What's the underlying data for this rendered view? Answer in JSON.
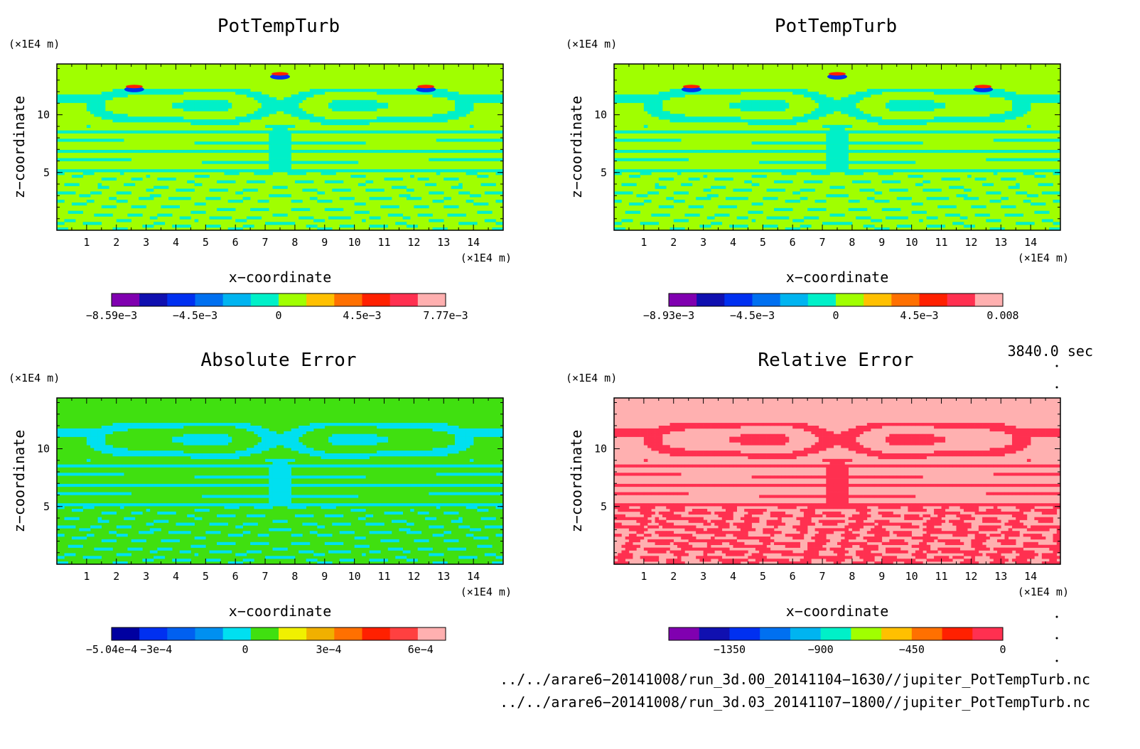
{
  "chart_data": [
    {
      "type": "heatmap",
      "title": "PotTempTurb",
      "xlabel": "x−coordinate",
      "ylabel": "z−coordinate",
      "x_unit": "(×1E4 m)",
      "y_unit": "(×1E4 m)",
      "xlim": [
        0,
        15
      ],
      "ylim": [
        0,
        14.4
      ],
      "x_ticks": [
        "1",
        "2",
        "3",
        "4",
        "5",
        "6",
        "7",
        "8",
        "9",
        "10",
        "11",
        "12",
        "13",
        "14"
      ],
      "y_ticks": [
        "5",
        "10"
      ],
      "style": "field",
      "colorbar": {
        "colors": [
          "#8000b0",
          "#1010b0",
          "#0030f0",
          "#0070f0",
          "#00b4f0",
          "#00f0c8",
          "#a0ff00",
          "#ffc000",
          "#ff7000",
          "#ff2000",
          "#ff3050",
          "#ffb0b0"
        ],
        "labels": [
          "−8.59e−3",
          "−4.5e−3",
          "0",
          "4.5e−3",
          "7.77e−3"
        ],
        "label_pos": [
          0,
          3,
          6,
          9,
          12
        ],
        "min": -0.00859,
        "max": 0.00777
      }
    },
    {
      "type": "heatmap",
      "title": "PotTempTurb",
      "xlabel": "x−coordinate",
      "ylabel": "z−coordinate",
      "x_unit": "(×1E4 m)",
      "y_unit": "(×1E4 m)",
      "xlim": [
        0,
        15
      ],
      "ylim": [
        0,
        14.4
      ],
      "x_ticks": [
        "1",
        "2",
        "3",
        "4",
        "5",
        "6",
        "7",
        "8",
        "9",
        "10",
        "11",
        "12",
        "13",
        "14"
      ],
      "y_ticks": [
        "5",
        "10"
      ],
      "style": "field",
      "colorbar": {
        "colors": [
          "#8000b0",
          "#1010b0",
          "#0030f0",
          "#0070f0",
          "#00b4f0",
          "#00f0c8",
          "#a0ff00",
          "#ffc000",
          "#ff7000",
          "#ff2000",
          "#ff3050",
          "#ffb0b0"
        ],
        "labels": [
          "−8.93e−3",
          "−4.5e−3",
          "0",
          "4.5e−3",
          "0.008"
        ],
        "label_pos": [
          0,
          3,
          6,
          9,
          12
        ],
        "min": -0.00893,
        "max": 0.008
      }
    },
    {
      "type": "heatmap",
      "title": "Absolute Error",
      "xlabel": "x−coordinate",
      "ylabel": "z−coordinate",
      "x_unit": "(×1E4 m)",
      "y_unit": "(×1E4 m)",
      "xlim": [
        0,
        15
      ],
      "ylim": [
        0,
        14.4
      ],
      "x_ticks": [
        "1",
        "2",
        "3",
        "4",
        "5",
        "6",
        "7",
        "8",
        "9",
        "10",
        "11",
        "12",
        "13",
        "14"
      ],
      "y_ticks": [
        "5",
        "10"
      ],
      "style": "abserr",
      "colorbar": {
        "colors": [
          "#0000a0",
          "#0030f0",
          "#0060f0",
          "#0090f0",
          "#00e0f0",
          "#40e010",
          "#f0f000",
          "#f0b000",
          "#ff7000",
          "#ff2000",
          "#ff4040",
          "#ffb0b0"
        ],
        "labels": [
          "−5.04e−4",
          "−3e−4",
          "0",
          "3e−4",
          "6e−4"
        ],
        "label_pos": [
          0,
          1.6,
          4.8,
          7.8,
          11.1
        ],
        "min": -0.000504,
        "max": 0.00064
      }
    },
    {
      "type": "heatmap",
      "title": "Relative Error",
      "xlabel": "x−coordinate",
      "ylabel": "z−coordinate",
      "x_unit": "(×1E4 m)",
      "y_unit": "(×1E4 m)",
      "xlim": [
        0,
        15
      ],
      "ylim": [
        0,
        14.4
      ],
      "x_ticks": [
        "1",
        "2",
        "3",
        "4",
        "5",
        "6",
        "7",
        "8",
        "9",
        "10",
        "11",
        "12",
        "13",
        "14"
      ],
      "y_ticks": [
        "5",
        "10"
      ],
      "style": "relerr",
      "colorbar": {
        "colors": [
          "#8000b0",
          "#1010b0",
          "#0030f0",
          "#0070f0",
          "#00b4f0",
          "#00f0c8",
          "#a0ff00",
          "#ffc000",
          "#ff7000",
          "#ff2000",
          "#ff3050"
        ],
        "labels": [
          "−1350",
          "−900",
          "−450",
          "0"
        ],
        "label_pos": [
          2,
          5,
          8,
          11
        ],
        "min": -1650,
        "max": 0
      }
    }
  ],
  "time_label": "3840.0 sec",
  "footer_lines": [
    "../../arare6−20141008/run_3d.00_20141104−1630//jupiter_PotTempTurb.nc",
    "../../arare6−20141008/run_3d.03_20141107−1800//jupiter_PotTempTurb.nc"
  ]
}
